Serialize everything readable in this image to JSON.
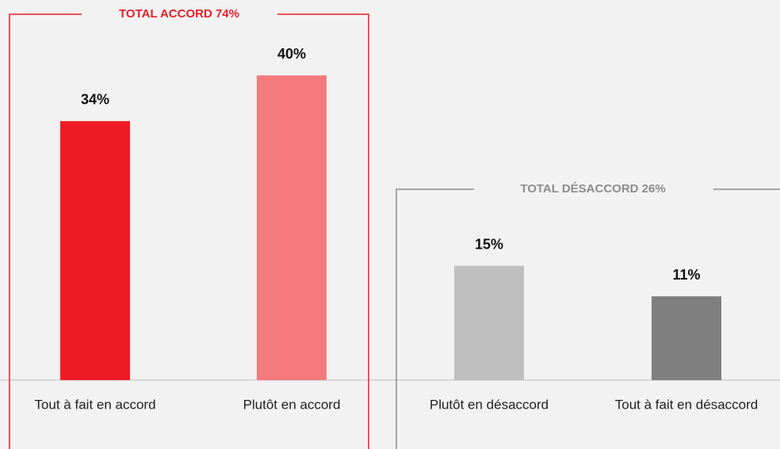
{
  "chart_data": {
    "type": "bar",
    "categories": [
      "Tout à fait en accord",
      "Plutôt en accord",
      "Plutôt en désaccord",
      "Tout à fait en désaccord"
    ],
    "values": [
      34,
      40,
      15,
      11
    ],
    "value_labels": [
      "34%",
      "40%",
      "15%",
      "11%"
    ],
    "colors": [
      "#ee1c25",
      "#f47a7e",
      "#bfbfbf",
      "#7f7f7f"
    ],
    "ylim": [
      0,
      50
    ],
    "annotations": [
      "TOTAL ACCORD 74%",
      "TOTAL DÉSACCORD 26%"
    ]
  }
}
